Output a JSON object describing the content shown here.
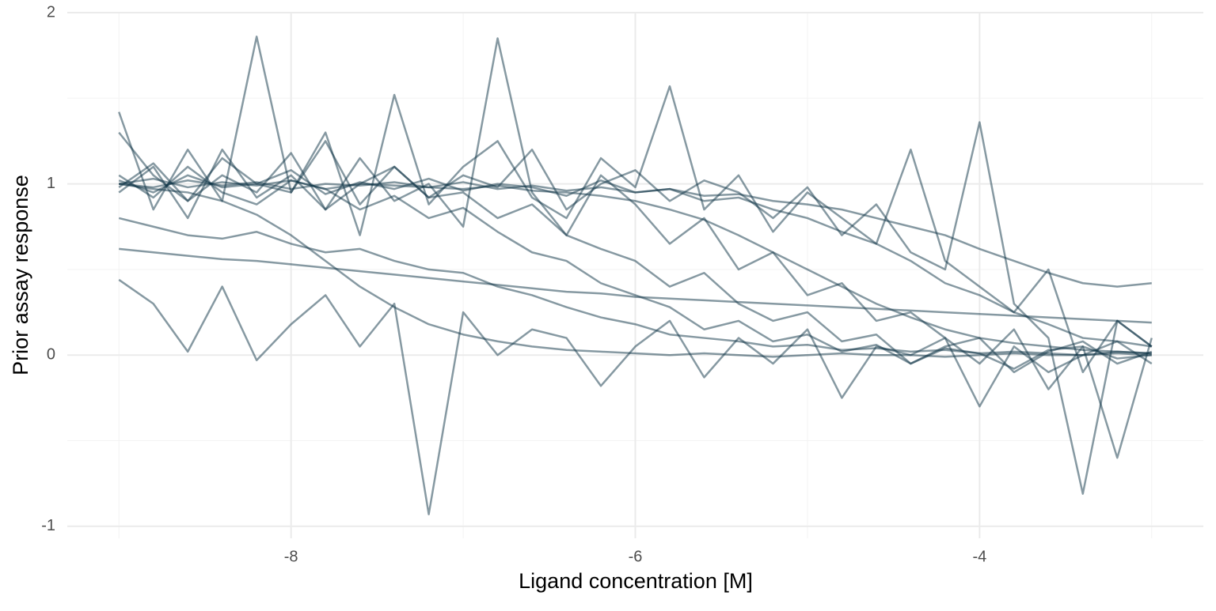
{
  "chart_data": {
    "type": "line",
    "x_label": "Ligand concentration [M]",
    "y_label": "Prior assay response",
    "color": "#0d3446",
    "opacity": 0.5,
    "xlim": [
      -9.3,
      -2.7
    ],
    "ylim": [
      -1.07,
      2.0
    ],
    "xticks": [
      -8,
      -6,
      -4
    ],
    "yticks": [
      -1,
      0,
      1,
      2
    ],
    "x_minor_grid": [
      -9,
      -7,
      -5,
      -3
    ],
    "y_minor_grid": [
      -0.5,
      0.5,
      1.5
    ],
    "grid": true,
    "x": [
      -9,
      -8.8,
      -8.6,
      -8.4,
      -8.2,
      -8,
      -7.8,
      -7.6,
      -7.4,
      -7.2,
      -7,
      -6.8,
      -6.6,
      -6.4,
      -6.2,
      -6,
      -5.8,
      -5.6,
      -5.4,
      -5.2,
      -5,
      -4.8,
      -4.6,
      -4.4,
      -4.2,
      -4,
      -3.8,
      -3.6,
      -3.4,
      -3.2,
      -3
    ],
    "series": [
      {
        "values": [
          1.0,
          0.98,
          1.02,
          0.99,
          1.01,
          0.97,
          1.0,
          0.99,
          1.01,
          0.98,
          0.97,
          0.99,
          0.96,
          0.95,
          0.93,
          0.9,
          0.85,
          0.79,
          0.7,
          0.6,
          0.5,
          0.4,
          0.3,
          0.22,
          0.15,
          0.1,
          0.07,
          0.05,
          0.03,
          0.02,
          0.01
        ]
      },
      {
        "values": [
          1.05,
          0.92,
          1.1,
          0.95,
          0.88,
          1.02,
          0.97,
          0.85,
          0.93,
          0.8,
          0.86,
          0.72,
          0.6,
          0.55,
          0.42,
          0.35,
          0.28,
          0.15,
          0.2,
          0.08,
          0.12,
          0.02,
          0.06,
          -0.05,
          0.04,
          0.01,
          -0.08,
          0.03,
          0.05,
          -0.02,
          0.0
        ]
      },
      {
        "values": [
          1.42,
          0.85,
          1.2,
          0.9,
          1.86,
          0.95,
          1.3,
          0.7,
          1.52,
          0.88,
          1.1,
          1.25,
          0.92,
          0.8,
          1.15,
          0.98,
          1.57,
          0.85,
          1.05,
          0.72,
          0.95,
          0.8,
          0.65,
          1.2,
          0.55,
          0.4,
          0.25,
          0.5,
          -0.1,
          0.2,
          0.05
        ]
      },
      {
        "values": [
          0.62,
          0.6,
          0.58,
          0.56,
          0.55,
          0.53,
          0.51,
          0.49,
          0.47,
          0.45,
          0.43,
          0.41,
          0.39,
          0.37,
          0.36,
          0.34,
          0.33,
          0.32,
          0.31,
          0.3,
          0.29,
          0.28,
          0.27,
          0.26,
          0.25,
          0.24,
          0.23,
          0.22,
          0.21,
          0.2,
          0.19
        ]
      },
      {
        "values": [
          0.44,
          0.3,
          0.02,
          0.4,
          -0.03,
          0.18,
          0.35,
          0.05,
          0.3,
          -0.93,
          0.25,
          0.0,
          0.15,
          0.1,
          -0.18,
          0.05,
          0.2,
          -0.13,
          0.1,
          -0.05,
          0.15,
          -0.25,
          0.05,
          0.0,
          0.1,
          -0.3,
          0.05,
          -0.1,
          0.0,
          0.08,
          -0.05
        ]
      },
      {
        "values": [
          1.0,
          0.97,
          0.95,
          0.9,
          0.82,
          0.7,
          0.55,
          0.4,
          0.28,
          0.18,
          0.12,
          0.08,
          0.05,
          0.03,
          0.02,
          0.01,
          0.0,
          0.01,
          0.0,
          -0.01,
          0.0,
          0.01,
          0.0,
          0.0,
          -0.01,
          0.0,
          0.01,
          0.0,
          0.0,
          0.01,
          0.0
        ]
      },
      {
        "values": [
          0.95,
          1.1,
          0.8,
          1.2,
          0.92,
          1.05,
          0.85,
          1.15,
          0.9,
          1.0,
          0.75,
          1.85,
          0.95,
          0.7,
          1.05,
          0.88,
          0.65,
          0.8,
          0.5,
          0.6,
          0.35,
          0.42,
          0.2,
          0.25,
          0.1,
          -0.05,
          0.15,
          -0.2,
          0.05,
          -0.6,
          0.1
        ]
      },
      {
        "values": [
          1.02,
          0.95,
          1.05,
          0.98,
          1.0,
          1.08,
          0.94,
          1.01,
          0.97,
          1.03,
          0.96,
          1.0,
          0.98,
          0.93,
          1.02,
          0.95,
          0.97,
          0.9,
          0.92,
          0.85,
          0.8,
          0.72,
          0.65,
          0.55,
          0.42,
          0.35,
          0.25,
          0.18,
          0.1,
          0.08,
          0.05
        ]
      },
      {
        "values": [
          1.0,
          1.03,
          0.98,
          1.01,
          0.99,
          1.02,
          0.97,
          1.0,
          0.99,
          0.98,
          1.01,
          0.97,
          0.99,
          0.96,
          0.98,
          0.95,
          0.97,
          0.93,
          0.94,
          0.9,
          0.88,
          0.85,
          0.8,
          0.75,
          0.7,
          0.62,
          0.55,
          0.48,
          0.42,
          0.4,
          0.42
        ]
      },
      {
        "values": [
          0.98,
          1.12,
          0.9,
          1.05,
          0.95,
          1.18,
          0.85,
          1.0,
          1.1,
          0.92,
          0.95,
          0.8,
          0.88,
          0.7,
          0.62,
          0.55,
          0.4,
          0.48,
          0.3,
          0.2,
          0.25,
          0.08,
          0.12,
          -0.05,
          0.05,
          0.1,
          -0.1,
          0.02,
          0.08,
          -0.05,
          0.02
        ]
      },
      {
        "values": [
          0.8,
          0.75,
          0.7,
          0.68,
          0.72,
          0.65,
          0.6,
          0.62,
          0.55,
          0.5,
          0.48,
          0.4,
          0.35,
          0.28,
          0.22,
          0.18,
          0.12,
          0.1,
          0.08,
          0.05,
          0.06,
          0.03,
          0.04,
          0.02,
          0.03,
          0.01,
          0.02,
          0.01,
          0.0,
          0.02,
          0.01
        ]
      },
      {
        "values": [
          1.3,
          1.05,
          0.9,
          1.15,
          1.0,
          0.95,
          1.25,
          0.88,
          1.1,
          0.92,
          1.05,
          0.98,
          1.2,
          0.85,
          1.0,
          1.08,
          0.9,
          1.02,
          0.95,
          0.8,
          0.98,
          0.7,
          0.88,
          0.6,
          0.5,
          1.36,
          0.3,
          0.1,
          -0.81,
          0.2,
          0.05
        ]
      }
    ]
  }
}
